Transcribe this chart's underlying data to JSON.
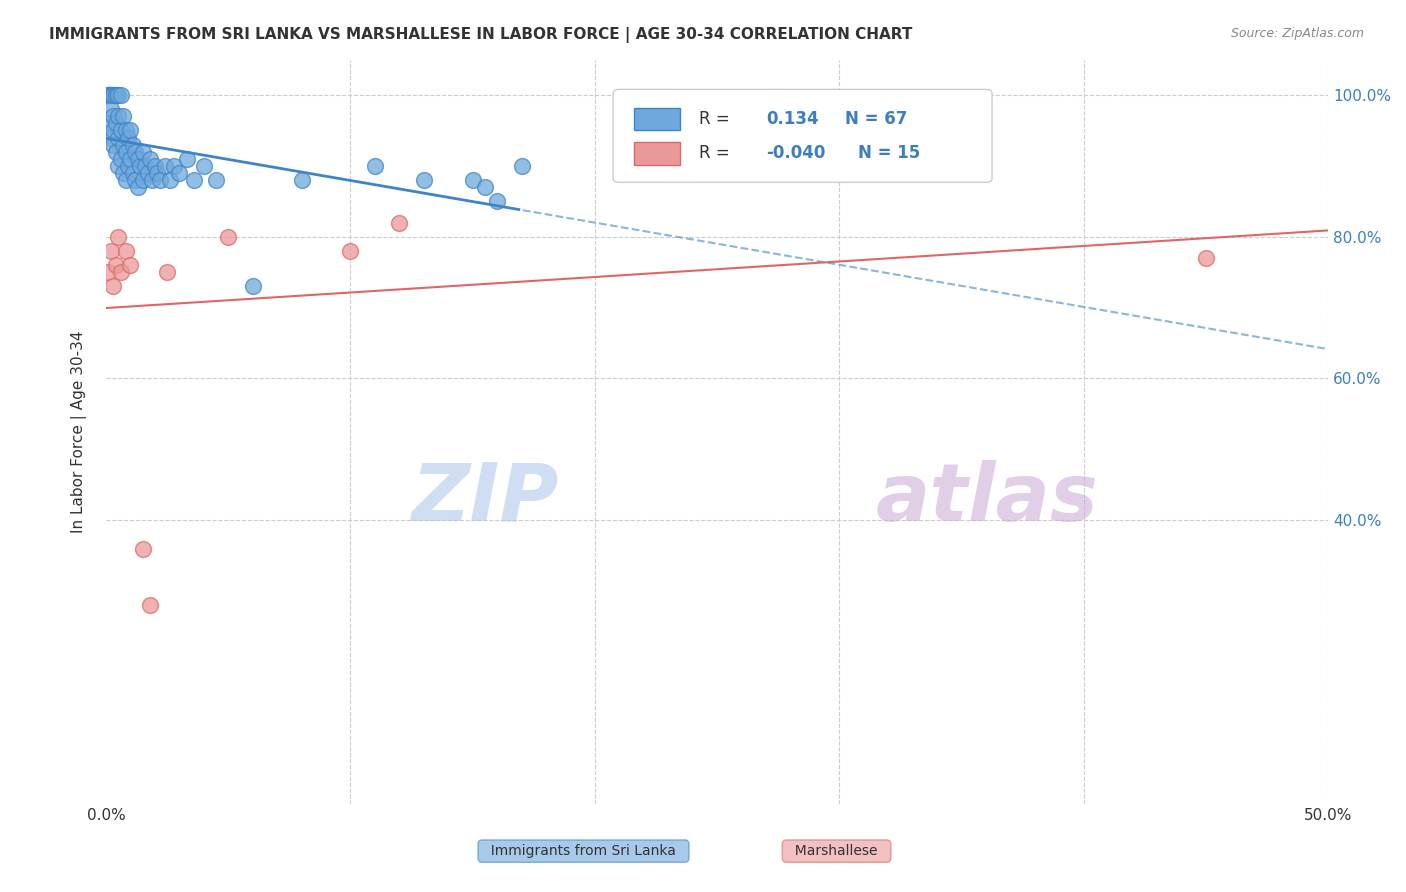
{
  "title": "IMMIGRANTS FROM SRI LANKA VS MARSHALLESE IN LABOR FORCE | AGE 30-34 CORRELATION CHART",
  "source_text": "Source: ZipAtlas.com",
  "ylabel": "In Labor Force | Age 30-34",
  "xmin": 0.0,
  "xmax": 0.5,
  "ymin": 0.0,
  "ymax": 1.05,
  "sri_lanka_R": 0.134,
  "sri_lanka_N": 67,
  "marshallese_R": -0.04,
  "marshallese_N": 15,
  "sri_lanka_color": "#6fa8dc",
  "marshallese_color": "#ea9999",
  "sri_lanka_line_color": "#3d85c8",
  "marshallese_line_color": "#e06666",
  "watermark_zip_color": "#a8c4e8",
  "watermark_atlas_color": "#d4a8d4",
  "sri_lanka_x": [
    0.001,
    0.001,
    0.001,
    0.002,
    0.002,
    0.002,
    0.002,
    0.002,
    0.002,
    0.003,
    0.003,
    0.003,
    0.003,
    0.003,
    0.004,
    0.004,
    0.004,
    0.004,
    0.005,
    0.005,
    0.005,
    0.005,
    0.006,
    0.006,
    0.006,
    0.007,
    0.007,
    0.007,
    0.008,
    0.008,
    0.008,
    0.009,
    0.009,
    0.01,
    0.01,
    0.011,
    0.011,
    0.012,
    0.012,
    0.013,
    0.013,
    0.014,
    0.015,
    0.015,
    0.016,
    0.017,
    0.018,
    0.019,
    0.02,
    0.021,
    0.022,
    0.024,
    0.026,
    0.028,
    0.03,
    0.033,
    0.036,
    0.04,
    0.045,
    0.06,
    0.08,
    0.11,
    0.13,
    0.15,
    0.155,
    0.16,
    0.17
  ],
  "sri_lanka_y": [
    1.0,
    1.0,
    1.0,
    1.0,
    1.0,
    1.0,
    0.98,
    0.96,
    0.94,
    1.0,
    1.0,
    0.97,
    0.95,
    0.93,
    1.0,
    1.0,
    0.96,
    0.92,
    1.0,
    0.97,
    0.94,
    0.9,
    1.0,
    0.95,
    0.91,
    0.97,
    0.93,
    0.89,
    0.95,
    0.92,
    0.88,
    0.94,
    0.9,
    0.95,
    0.91,
    0.93,
    0.89,
    0.92,
    0.88,
    0.91,
    0.87,
    0.9,
    0.92,
    0.88,
    0.9,
    0.89,
    0.91,
    0.88,
    0.9,
    0.89,
    0.88,
    0.9,
    0.88,
    0.9,
    0.89,
    0.91,
    0.88,
    0.9,
    0.88,
    0.73,
    0.88,
    0.9,
    0.88,
    0.88,
    0.87,
    0.85,
    0.9
  ],
  "marshallese_x": [
    0.001,
    0.002,
    0.003,
    0.004,
    0.005,
    0.006,
    0.008,
    0.01,
    0.015,
    0.018,
    0.025,
    0.05,
    0.1,
    0.12,
    0.45
  ],
  "marshallese_y": [
    0.75,
    0.78,
    0.73,
    0.76,
    0.8,
    0.75,
    0.78,
    0.76,
    0.36,
    0.28,
    0.75,
    0.8,
    0.78,
    0.82,
    0.77
  ]
}
